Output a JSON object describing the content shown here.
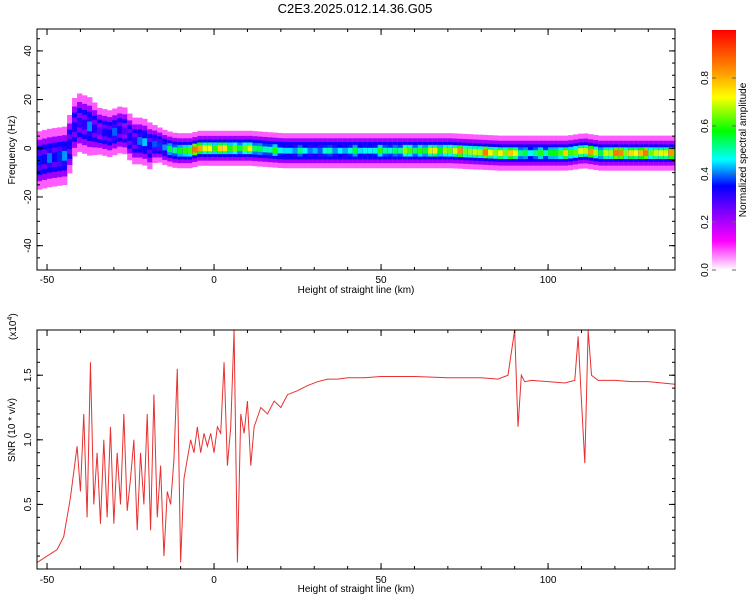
{
  "figure_title": "C2E3.2025.012.14.36.G05",
  "chart_data": [
    {
      "type": "heatmap",
      "xlabel": "Height of straight line (km)",
      "ylabel": "Frequency (Hz)",
      "xlim": [
        -53,
        138
      ],
      "ylim": [
        -50,
        49
      ],
      "xticks": [
        -50,
        0,
        50,
        100
      ],
      "yticks": [
        -40,
        -20,
        0,
        20,
        40
      ],
      "grid": false,
      "colorbar": {
        "label": "Normalized spectral amplitude",
        "range": [
          0,
          1
        ],
        "ticks": [
          "0.0",
          "0.2",
          "0.4",
          "0.6",
          "0.8"
        ],
        "tick_values": [
          0.0,
          0.2,
          0.4,
          0.6,
          0.8
        ],
        "colors": [
          "#ffffff",
          "#ff00ff",
          "#8000ff",
          "#0000ff",
          "#00ffff",
          "#00ff00",
          "#ffff00",
          "#ff8000",
          "#ff0000"
        ]
      },
      "ridge": {
        "x": [
          -53,
          -50,
          -45,
          -42,
          -38,
          -35,
          -32,
          -28,
          -25,
          -22,
          -20,
          -18,
          -15,
          -12,
          -8,
          -5,
          0,
          5,
          10,
          20,
          30,
          50,
          70,
          85,
          90,
          95,
          100,
          105,
          110,
          115,
          120,
          130,
          138
        ],
        "frequency": [
          -5,
          -4,
          -3,
          11,
          9,
          7,
          6,
          8,
          3,
          3,
          1,
          2,
          0,
          -1,
          -1,
          0,
          0,
          0,
          0,
          -1,
          -1,
          -1,
          -1,
          -2,
          -2,
          -2,
          -2,
          -2,
          -1,
          -2,
          -2,
          -2,
          -2
        ],
        "amplitude": [
          0.4,
          0.5,
          0.45,
          0.4,
          0.45,
          0.35,
          0.5,
          0.35,
          0.45,
          0.5,
          0.45,
          0.5,
          0.55,
          0.7,
          0.85,
          0.95,
          0.85,
          0.8,
          0.75,
          0.6,
          0.55,
          0.65,
          0.85,
          0.9,
          0.8,
          0.6,
          0.75,
          0.8,
          0.9,
          0.8,
          0.95,
          0.9,
          0.85
        ],
        "width_hz": [
          5,
          5,
          5,
          5,
          5,
          4,
          4,
          4,
          4,
          4,
          4,
          3,
          3,
          3,
          3,
          3,
          3,
          3,
          3,
          3,
          3,
          3,
          3,
          3,
          3,
          3,
          3,
          3,
          3,
          3,
          3,
          3,
          3
        ]
      }
    },
    {
      "type": "line",
      "xlabel": "Height of straight line (km)",
      "ylabel": "SNR (10 * v/v)",
      "y_scale_label": "(x10^4)",
      "y_scale_base": "(x10",
      "y_scale_exp": "4",
      "xlim": [
        -53,
        138
      ],
      "ylim": [
        0,
        1.85
      ],
      "xticks": [
        -50,
        0,
        50,
        100
      ],
      "yticks": [
        0.5,
        1.0,
        1.5
      ],
      "ytick_labels": [
        "0.5",
        "1.0",
        "1.5"
      ],
      "grid": false,
      "series": [
        {
          "color": "#e83030",
          "x": [
            -53,
            -50,
            -47,
            -45,
            -43,
            -41,
            -40,
            -39,
            -38,
            -37,
            -36,
            -35,
            -34,
            -33,
            -32,
            -31,
            -30,
            -29,
            -28,
            -27,
            -26,
            -25,
            -24,
            -23,
            -22,
            -21,
            -20,
            -19,
            -18,
            -17,
            -16,
            -15,
            -14,
            -13,
            -12,
            -11,
            -10,
            -9,
            -8,
            -7,
            -6,
            -5,
            -4,
            -3,
            -2,
            -1,
            0,
            1,
            2,
            3,
            4,
            5,
            6,
            7,
            8,
            9,
            10,
            11,
            12,
            14,
            16,
            18,
            20,
            22,
            25,
            28,
            31,
            34,
            37,
            40,
            45,
            50,
            60,
            70,
            80,
            85,
            88,
            90,
            91,
            92,
            93,
            95,
            100,
            105,
            108,
            109,
            110,
            111,
            112,
            113,
            115,
            120,
            125,
            130,
            138
          ],
          "values": [
            0.05,
            0.1,
            0.15,
            0.25,
            0.55,
            0.95,
            0.6,
            1.2,
            0.4,
            1.6,
            0.5,
            0.9,
            0.35,
            1.0,
            0.4,
            1.1,
            0.35,
            0.9,
            0.5,
            1.2,
            0.45,
            0.7,
            1.0,
            0.3,
            0.9,
            0.5,
            1.2,
            0.3,
            1.35,
            0.4,
            0.8,
            0.1,
            0.6,
            0.5,
            0.85,
            1.55,
            0.05,
            0.7,
            0.85,
            1.0,
            0.9,
            1.1,
            0.9,
            1.05,
            0.95,
            1.05,
            0.9,
            1.1,
            1.05,
            1.6,
            0.8,
            1.1,
            1.85,
            0.05,
            1.2,
            1.05,
            1.3,
            0.8,
            1.1,
            1.25,
            1.2,
            1.3,
            1.25,
            1.35,
            1.38,
            1.42,
            1.45,
            1.47,
            1.47,
            1.48,
            1.48,
            1.49,
            1.49,
            1.48,
            1.48,
            1.47,
            1.5,
            1.85,
            1.1,
            1.5,
            1.45,
            1.46,
            1.45,
            1.44,
            1.46,
            1.8,
            1.3,
            0.82,
            1.85,
            1.5,
            1.46,
            1.46,
            1.45,
            1.45,
            1.43
          ]
        }
      ]
    }
  ]
}
